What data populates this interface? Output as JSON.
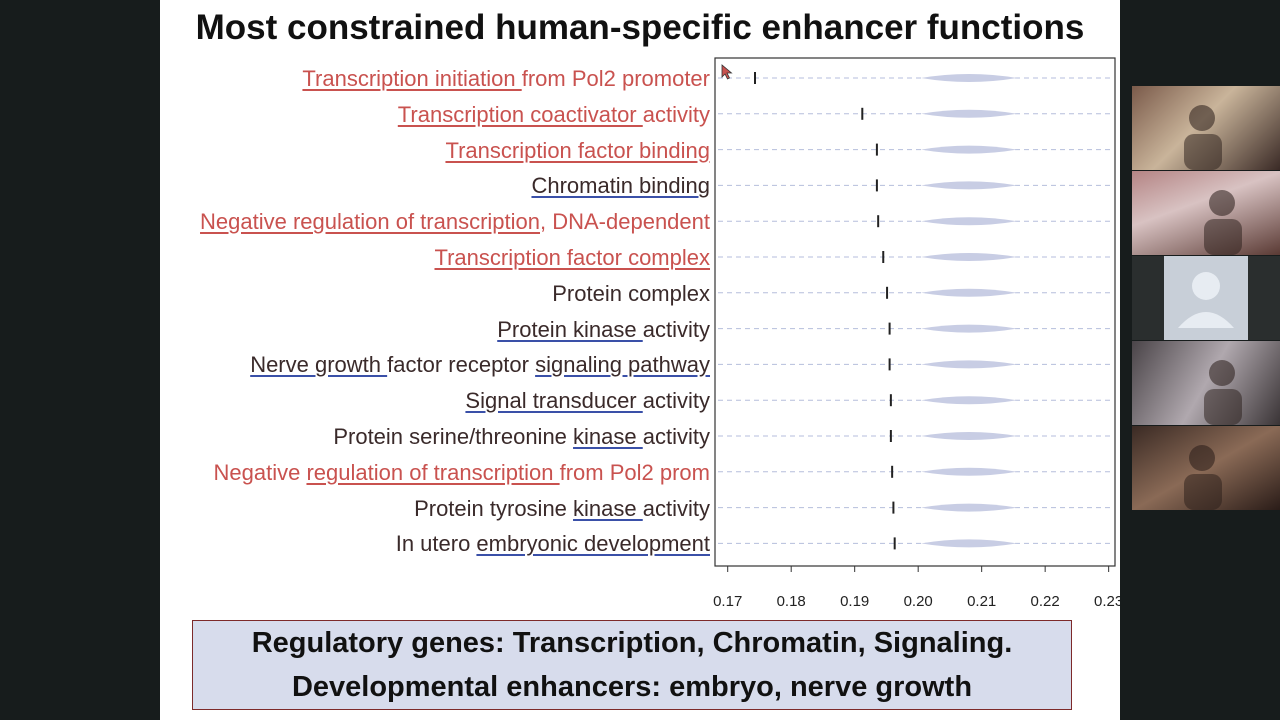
{
  "slide": {
    "title": "Most constrained human-specific enhancer functions",
    "summary_lines": [
      "Regulatory genes: Transcription, Chromatin, Signaling.",
      "Developmental enhancers: embryo, nerve growth"
    ]
  },
  "chart_data": {
    "type": "scatter",
    "xlim": [
      0.168,
      0.231
    ],
    "x_ticks": [
      "0.17",
      "0.18",
      "0.19",
      "0.20",
      "0.21",
      "0.22",
      "0.23"
    ],
    "x_tick_values": [
      0.17,
      0.18,
      0.19,
      0.2,
      0.21,
      0.22,
      0.23
    ],
    "categories": [
      {
        "segments": [
          {
            "t": "Transcription initiation ",
            "u": true
          },
          {
            "t": "from  Pol2 promoter",
            "u": false
          }
        ],
        "color": "red",
        "observed": 0.1743,
        "null_center": 0.208
      },
      {
        "segments": [
          {
            "t": "Transcription coactivator ",
            "u": true
          },
          {
            "t": "activity",
            "u": false
          }
        ],
        "color": "red",
        "observed": 0.1912,
        "null_center": 0.208
      },
      {
        "segments": [
          {
            "t": "Transcription factor binding",
            "u": true
          }
        ],
        "color": "red",
        "observed": 0.1935,
        "null_center": 0.208
      },
      {
        "segments": [
          {
            "t": "Chromatin binding",
            "u": true
          }
        ],
        "color": "dark",
        "observed": 0.1935,
        "null_center": 0.208
      },
      {
        "segments": [
          {
            "t": "Negative regulation of transcription",
            "u": true
          },
          {
            "t": ", DNA-dependent",
            "u": false
          }
        ],
        "color": "red",
        "observed": 0.1937,
        "null_center": 0.208
      },
      {
        "segments": [
          {
            "t": "Transcription factor complex",
            "u": true
          }
        ],
        "color": "red",
        "observed": 0.1945,
        "null_center": 0.208
      },
      {
        "segments": [
          {
            "t": "Protein complex",
            "u": false
          }
        ],
        "color": "dark",
        "observed": 0.1951,
        "null_center": 0.208
      },
      {
        "segments": [
          {
            "t": "Protein kinase ",
            "u": true
          },
          {
            "t": "activity",
            "u": false
          }
        ],
        "color": "dark",
        "observed": 0.1955,
        "null_center": 0.208
      },
      {
        "segments": [
          {
            "t": "Nerve growth ",
            "u": true
          },
          {
            "t": "factor receptor ",
            "u": false
          },
          {
            "t": "signaling pathway",
            "u": true
          }
        ],
        "color": "dark",
        "observed": 0.1955,
        "null_center": 0.208
      },
      {
        "segments": [
          {
            "t": "Signal transducer ",
            "u": true
          },
          {
            "t": "activity",
            "u": false
          }
        ],
        "color": "dark",
        "observed": 0.1957,
        "null_center": 0.208
      },
      {
        "segments": [
          {
            "t": "Protein serine/threonine ",
            "u": false
          },
          {
            "t": "kinase ",
            "u": true
          },
          {
            "t": "activity",
            "u": false
          }
        ],
        "color": "dark",
        "observed": 0.1957,
        "null_center": 0.208
      },
      {
        "segments": [
          {
            "t": "Negative ",
            "u": false
          },
          {
            "t": "regulation of transcription ",
            "u": true
          },
          {
            "t": "from Pol2 prom",
            "u": false
          }
        ],
        "color": "red",
        "observed": 0.1959,
        "null_center": 0.208
      },
      {
        "segments": [
          {
            "t": "Protein tyrosine ",
            "u": false
          },
          {
            "t": "kinase ",
            "u": true
          },
          {
            "t": "activity",
            "u": false
          }
        ],
        "color": "dark",
        "observed": 0.1961,
        "null_center": 0.208
      },
      {
        "segments": [
          {
            "t": "In utero ",
            "u": false
          },
          {
            "t": "embryonic development",
            "u": true
          }
        ],
        "color": "dark",
        "observed": 0.1963,
        "null_center": 0.208
      }
    ]
  },
  "participants": [
    "participant-1",
    "participant-2",
    "participant-3",
    "participant-4",
    "participant-5"
  ],
  "colors": {
    "highlight": "#c9524f",
    "underline": "#3a50a8",
    "violin": "#c8cde4",
    "summary_bg": "#d7dcec"
  }
}
